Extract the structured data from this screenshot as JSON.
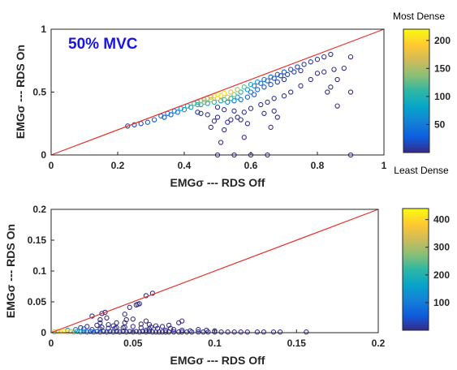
{
  "chart_data": [
    {
      "type": "scatter",
      "annotation": "50% MVC",
      "xlabel": "EMGσ --- RDS Off",
      "ylabel": "EMGσ --- RDS On",
      "xlim": [
        0,
        1
      ],
      "ylim": [
        0,
        1
      ],
      "xticks": [
        {
          "value": 0,
          "label": "0"
        },
        {
          "value": 0.2,
          "label": "0.2"
        },
        {
          "value": 0.4,
          "label": "0.4"
        },
        {
          "value": 0.6,
          "label": "0.6"
        },
        {
          "value": 0.8,
          "label": "0.8"
        },
        {
          "value": 1,
          "label": "1"
        }
      ],
      "yticks": [
        {
          "value": 0,
          "label": "0"
        },
        {
          "value": 0.5,
          "label": "0.5"
        },
        {
          "value": 1,
          "label": "1"
        }
      ],
      "reference_line": {
        "from": [
          0,
          0
        ],
        "to": [
          1,
          1
        ],
        "color": "#e8312b"
      },
      "colorbar": {
        "min": 0,
        "max": 220,
        "ticks": [
          {
            "value": 50,
            "label": "50"
          },
          {
            "value": 100,
            "label": "100"
          },
          {
            "value": 150,
            "label": "150"
          },
          {
            "value": 200,
            "label": "200"
          }
        ],
        "top_caption": "Most Dense",
        "bottom_caption": "Least Dense"
      },
      "points": [
        [
          0.23,
          0.23,
          10
        ],
        [
          0.25,
          0.24,
          14
        ],
        [
          0.27,
          0.25,
          18
        ],
        [
          0.29,
          0.26,
          22
        ],
        [
          0.31,
          0.28,
          26
        ],
        [
          0.33,
          0.31,
          35
        ],
        [
          0.35,
          0.33,
          48
        ],
        [
          0.37,
          0.35,
          62
        ],
        [
          0.39,
          0.37,
          78
        ],
        [
          0.41,
          0.39,
          98
        ],
        [
          0.43,
          0.41,
          118
        ],
        [
          0.45,
          0.43,
          140
        ],
        [
          0.47,
          0.45,
          165
        ],
        [
          0.49,
          0.47,
          190
        ],
        [
          0.5,
          0.48,
          215
        ],
        [
          0.52,
          0.49,
          205
        ],
        [
          0.54,
          0.5,
          180
        ],
        [
          0.56,
          0.52,
          150
        ],
        [
          0.58,
          0.54,
          120
        ],
        [
          0.6,
          0.56,
          92
        ],
        [
          0.62,
          0.58,
          70
        ],
        [
          0.64,
          0.6,
          52
        ],
        [
          0.66,
          0.62,
          38
        ],
        [
          0.68,
          0.64,
          27
        ],
        [
          0.7,
          0.66,
          20
        ],
        [
          0.72,
          0.68,
          15
        ],
        [
          0.74,
          0.7,
          12
        ],
        [
          0.76,
          0.72,
          9
        ],
        [
          0.78,
          0.74,
          7
        ],
        [
          0.8,
          0.76,
          6
        ],
        [
          0.82,
          0.78,
          5
        ],
        [
          0.84,
          0.8,
          4
        ],
        [
          0.42,
          0.38,
          80
        ],
        [
          0.44,
          0.4,
          100
        ],
        [
          0.46,
          0.42,
          130
        ],
        [
          0.48,
          0.44,
          150
        ],
        [
          0.5,
          0.45,
          170
        ],
        [
          0.53,
          0.46,
          160
        ],
        [
          0.55,
          0.48,
          130
        ],
        [
          0.57,
          0.5,
          100
        ],
        [
          0.4,
          0.36,
          60
        ],
        [
          0.38,
          0.34,
          40
        ],
        [
          0.36,
          0.32,
          30
        ],
        [
          0.34,
          0.3,
          22
        ],
        [
          0.59,
          0.52,
          75
        ],
        [
          0.61,
          0.55,
          55
        ],
        [
          0.63,
          0.57,
          40
        ],
        [
          0.65,
          0.59,
          30
        ],
        [
          0.67,
          0.61,
          22
        ],
        [
          0.69,
          0.63,
          16
        ],
        [
          0.71,
          0.64,
          12
        ],
        [
          0.73,
          0.66,
          9
        ],
        [
          0.75,
          0.67,
          7
        ],
        [
          0.48,
          0.46,
          170
        ],
        [
          0.51,
          0.47,
          190
        ],
        [
          0.44,
          0.42,
          120
        ],
        [
          0.46,
          0.44,
          150
        ],
        [
          0.52,
          0.44,
          110
        ],
        [
          0.54,
          0.45,
          90
        ],
        [
          0.56,
          0.46,
          70
        ],
        [
          0.6,
          0.5,
          45
        ],
        [
          0.62,
          0.52,
          35
        ],
        [
          0.64,
          0.54,
          25
        ],
        [
          0.66,
          0.56,
          18
        ],
        [
          0.68,
          0.58,
          12
        ],
        [
          0.7,
          0.6,
          9
        ],
        [
          0.45,
          0.4,
          70
        ],
        [
          0.47,
          0.41,
          85
        ],
        [
          0.49,
          0.42,
          95
        ],
        [
          0.51,
          0.43,
          90
        ],
        [
          0.53,
          0.42,
          60
        ],
        [
          0.55,
          0.43,
          50
        ],
        [
          0.57,
          0.44,
          40
        ],
        [
          0.59,
          0.46,
          30
        ],
        [
          0.61,
          0.48,
          24
        ],
        [
          0.5,
          0.38,
          5
        ],
        [
          0.52,
          0.36,
          4
        ],
        [
          0.55,
          0.35,
          3
        ],
        [
          0.58,
          0.34,
          3
        ],
        [
          0.6,
          0.37,
          4
        ],
        [
          0.63,
          0.4,
          5
        ],
        [
          0.65,
          0.42,
          4
        ],
        [
          0.67,
          0.45,
          4
        ],
        [
          0.7,
          0.47,
          3
        ],
        [
          0.72,
          0.5,
          3
        ],
        [
          0.75,
          0.55,
          3
        ],
        [
          0.78,
          0.6,
          3
        ],
        [
          0.8,
          0.65,
          2
        ],
        [
          0.82,
          0.66,
          2
        ],
        [
          0.85,
          0.68,
          2
        ],
        [
          0.88,
          0.69,
          2
        ],
        [
          0.9,
          0.78,
          2
        ],
        [
          0.86,
          0.6,
          2
        ],
        [
          0.84,
          0.54,
          2
        ],
        [
          0.83,
          0.5,
          2
        ],
        [
          0.9,
          0.5,
          2
        ],
        [
          0.86,
          0.39,
          2
        ],
        [
          0.67,
          0.35,
          3
        ],
        [
          0.68,
          0.3,
          2
        ],
        [
          0.64,
          0.33,
          2
        ],
        [
          0.66,
          0.22,
          2
        ],
        [
          0.57,
          0.28,
          3
        ],
        [
          0.58,
          0.14,
          2
        ],
        [
          0.59,
          0.25,
          2
        ],
        [
          0.52,
          0.2,
          3
        ],
        [
          0.51,
          0.1,
          3
        ],
        [
          0.49,
          0.27,
          3
        ],
        [
          0.5,
          0.3,
          4
        ],
        [
          0.47,
          0.32,
          4
        ],
        [
          0.44,
          0.34,
          5
        ],
        [
          0.45,
          0.33,
          5
        ],
        [
          0.56,
          0.3,
          3
        ],
        [
          0.54,
          0.28,
          3
        ],
        [
          0.48,
          0.22,
          2
        ],
        [
          0.53,
          0.26,
          3
        ],
        [
          0.5,
          0.0,
          2
        ],
        [
          0.55,
          0.0,
          2
        ],
        [
          0.6,
          0.0,
          2
        ],
        [
          0.65,
          0.0,
          2
        ],
        [
          0.9,
          0.0,
          2
        ]
      ]
    },
    {
      "type": "scatter",
      "xlabel": "EMGσ --- RDS Off",
      "ylabel": "EMGσ --- RDS On",
      "xlim": [
        0,
        0.2
      ],
      "ylim": [
        0,
        0.2
      ],
      "xticks": [
        {
          "value": 0,
          "label": "0"
        },
        {
          "value": 0.05,
          "label": "0.05"
        },
        {
          "value": 0.1,
          "label": "0.1"
        },
        {
          "value": 0.15,
          "label": "0.15"
        },
        {
          "value": 0.2,
          "label": "0.2"
        }
      ],
      "yticks": [
        {
          "value": 0,
          "label": "0"
        },
        {
          "value": 0.05,
          "label": "0.05"
        },
        {
          "value": 0.1,
          "label": "0.1"
        },
        {
          "value": 0.15,
          "label": "0.15"
        },
        {
          "value": 0.2,
          "label": "0.2"
        }
      ],
      "reference_line": {
        "from": [
          0,
          0
        ],
        "to": [
          0.2,
          0.2
        ],
        "color": "#e8312b"
      },
      "colorbar": {
        "min": 0,
        "max": 440,
        "ticks": [
          {
            "value": 100,
            "label": "100"
          },
          {
            "value": 200,
            "label": "200"
          },
          {
            "value": 300,
            "label": "300"
          },
          {
            "value": 400,
            "label": "400"
          }
        ]
      },
      "points": [
        [
          0.002,
          0.001,
          300
        ],
        [
          0.004,
          0.002,
          360
        ],
        [
          0.006,
          0.001,
          420
        ],
        [
          0.008,
          0.002,
          400
        ],
        [
          0.01,
          0.001,
          380
        ],
        [
          0.012,
          0.002,
          320
        ],
        [
          0.014,
          0.001,
          260
        ],
        [
          0.016,
          0.002,
          200
        ],
        [
          0.018,
          0.001,
          150
        ],
        [
          0.02,
          0.002,
          110
        ],
        [
          0.022,
          0.001,
          80
        ],
        [
          0.024,
          0.002,
          60
        ],
        [
          0.026,
          0.001,
          45
        ],
        [
          0.028,
          0.002,
          35
        ],
        [
          0.03,
          0.001,
          25
        ],
        [
          0.032,
          0.002,
          20
        ],
        [
          0.034,
          0.001,
          16
        ],
        [
          0.036,
          0.002,
          12
        ],
        [
          0.038,
          0.001,
          10
        ],
        [
          0.04,
          0.002,
          8
        ],
        [
          0.042,
          0.001,
          6
        ],
        [
          0.044,
          0.002,
          5
        ],
        [
          0.046,
          0.001,
          4
        ],
        [
          0.048,
          0.002,
          4
        ],
        [
          0.05,
          0.001,
          3
        ],
        [
          0.052,
          0.002,
          3
        ],
        [
          0.054,
          0.001,
          3
        ],
        [
          0.056,
          0.002,
          3
        ],
        [
          0.058,
          0.001,
          2
        ],
        [
          0.06,
          0.002,
          2
        ],
        [
          0.062,
          0.001,
          2
        ],
        [
          0.064,
          0.001,
          2
        ],
        [
          0.066,
          0.001,
          2
        ],
        [
          0.068,
          0.001,
          2
        ],
        [
          0.07,
          0.001,
          2
        ],
        [
          0.072,
          0.001,
          2
        ],
        [
          0.075,
          0.001,
          2
        ],
        [
          0.078,
          0.001,
          2
        ],
        [
          0.08,
          0.001,
          2
        ],
        [
          0.083,
          0.001,
          2
        ],
        [
          0.086,
          0.001,
          2
        ],
        [
          0.09,
          0.001,
          2
        ],
        [
          0.093,
          0.001,
          2
        ],
        [
          0.096,
          0.001,
          2
        ],
        [
          0.1,
          0.001,
          2
        ],
        [
          0.104,
          0.001,
          2
        ],
        [
          0.108,
          0.001,
          2
        ],
        [
          0.112,
          0.001,
          2
        ],
        [
          0.116,
          0.001,
          2
        ],
        [
          0.12,
          0.001,
          2
        ],
        [
          0.126,
          0.001,
          2
        ],
        [
          0.13,
          0.001,
          2
        ],
        [
          0.136,
          0.001,
          2
        ],
        [
          0.14,
          0.001,
          2
        ],
        [
          0.156,
          0.001,
          2
        ],
        [
          0.01,
          0.004,
          150
        ],
        [
          0.015,
          0.005,
          80
        ],
        [
          0.02,
          0.006,
          40
        ],
        [
          0.025,
          0.005,
          20
        ],
        [
          0.03,
          0.006,
          12
        ],
        [
          0.035,
          0.007,
          8
        ],
        [
          0.04,
          0.008,
          5
        ],
        [
          0.045,
          0.009,
          4
        ],
        [
          0.05,
          0.01,
          3
        ],
        [
          0.055,
          0.008,
          3
        ],
        [
          0.06,
          0.006,
          3
        ],
        [
          0.065,
          0.007,
          2
        ],
        [
          0.07,
          0.004,
          2
        ],
        [
          0.075,
          0.005,
          2
        ],
        [
          0.08,
          0.004,
          2
        ],
        [
          0.085,
          0.003,
          2
        ],
        [
          0.09,
          0.005,
          2
        ],
        [
          0.095,
          0.004,
          2
        ],
        [
          0.1,
          0.003,
          2
        ],
        [
          0.055,
          0.014,
          3
        ],
        [
          0.06,
          0.013,
          3
        ],
        [
          0.064,
          0.011,
          2
        ],
        [
          0.068,
          0.01,
          2
        ],
        [
          0.072,
          0.012,
          2
        ],
        [
          0.078,
          0.016,
          2
        ],
        [
          0.08,
          0.019,
          2
        ],
        [
          0.058,
          0.019,
          2
        ],
        [
          0.04,
          0.016,
          3
        ],
        [
          0.035,
          0.013,
          3
        ],
        [
          0.03,
          0.016,
          3
        ],
        [
          0.028,
          0.012,
          3
        ],
        [
          0.022,
          0.01,
          5
        ],
        [
          0.018,
          0.008,
          10
        ],
        [
          0.045,
          0.016,
          3
        ],
        [
          0.05,
          0.022,
          2
        ],
        [
          0.045,
          0.03,
          2
        ],
        [
          0.048,
          0.041,
          2
        ],
        [
          0.053,
          0.046,
          2
        ],
        [
          0.052,
          0.045,
          2
        ],
        [
          0.058,
          0.06,
          2
        ],
        [
          0.062,
          0.064,
          2
        ],
        [
          0.054,
          0.047,
          2
        ],
        [
          0.033,
          0.033,
          2
        ],
        [
          0.031,
          0.031,
          2
        ],
        [
          0.025,
          0.027,
          2
        ],
        [
          0.034,
          0.024,
          2
        ],
        [
          0.03,
          0.021,
          2
        ],
        [
          0.046,
          0.021,
          2
        ],
        [
          0.044,
          0.008,
          3
        ],
        [
          0.038,
          0.011,
          3
        ],
        [
          0.031,
          0.009,
          3
        ],
        [
          0.039,
          0.007,
          4
        ],
        [
          0.058,
          0.004,
          3
        ],
        [
          0.061,
          0.009,
          2
        ],
        [
          0.073,
          0.007,
          2
        ]
      ]
    }
  ]
}
